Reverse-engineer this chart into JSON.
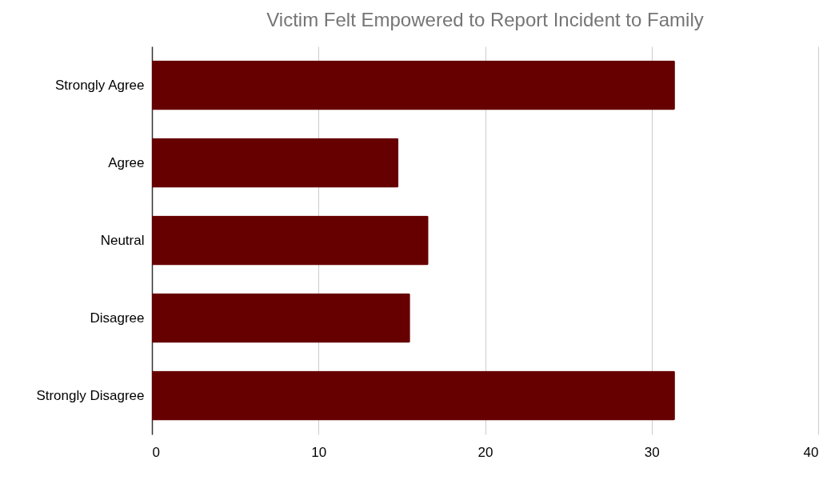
{
  "chart_data": {
    "type": "bar",
    "orientation": "horizontal",
    "title": "Victim Felt Empowered to Report Incident to Family",
    "categories": [
      "Strongly Agree",
      "Agree",
      "Neutral",
      "Disagree",
      "Strongly Disagree"
    ],
    "values": [
      31.4,
      14.8,
      16.6,
      15.5,
      31.4
    ],
    "color": "#660000",
    "xlim": [
      0,
      40
    ],
    "xticks": [
      0,
      10,
      20,
      30,
      40
    ],
    "grid": "x"
  }
}
